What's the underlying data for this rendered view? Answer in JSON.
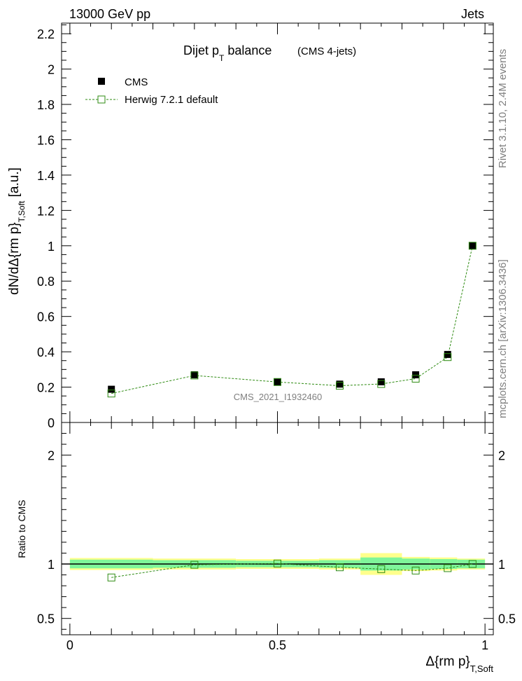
{
  "header": {
    "left": "13000 GeV pp",
    "right": "Jets"
  },
  "side": {
    "rivet": "Rivet 3.1.10, 2.4M events",
    "mcplots": "mcplots.cern.ch [arXiv:1306.3436]"
  },
  "plot": {
    "title_main": "Dijet p",
    "title_sub": "T",
    "title_rest": " balance",
    "title_note": "(CMS 4-jets)",
    "ylabel": "dN/dΔ{rm p}",
    "ylabel_sub": "T,Soft",
    "ylabel_unit": " [a.u.]",
    "analysis_id": "CMS_2021_I1932460",
    "ratio_ylabel": "Ratio to CMS",
    "xlabel": "Δ{rm p}",
    "xlabel_sub": "T,Soft"
  },
  "legend": {
    "placement": "top-left",
    "cms": "CMS",
    "mc": "Herwig 7.2.1 default"
  },
  "colors": {
    "data": "#000000",
    "mc": "#2e8b12",
    "band_stat": "#7ff59a",
    "band_total": "#ffff8c"
  },
  "chart_data": [
    {
      "type": "scatter",
      "panel": "main",
      "xlim": [
        -0.02,
        1.02
      ],
      "ylim": [
        0,
        2.26
      ],
      "xticks": [
        0,
        0.5,
        1
      ],
      "yticks": [
        0,
        0.2,
        0.4,
        0.6,
        0.8,
        1,
        1.2,
        1.4,
        1.6,
        1.8,
        2,
        2.2
      ],
      "ytick_labels": [
        "0",
        "0.2",
        "0.4",
        "0.6",
        "0.8",
        "1",
        "1.2",
        "1.4",
        "1.6",
        "1.8",
        "2",
        "2.2"
      ],
      "x": [
        0.1,
        0.3,
        0.5,
        0.65,
        0.75,
        0.833,
        0.91,
        0.97
      ],
      "series": [
        {
          "name": "CMS",
          "values": [
            0.188,
            0.27,
            0.23,
            0.217,
            0.23,
            0.27,
            0.385,
            1.0
          ]
        },
        {
          "name": "Herwig 7.2.1 default",
          "values": [
            0.164,
            0.266,
            0.229,
            0.208,
            0.218,
            0.248,
            0.37,
            1.0
          ]
        }
      ]
    },
    {
      "type": "scatter",
      "panel": "ratio",
      "xlim": [
        -0.02,
        1.02
      ],
      "ylim": [
        0.35,
        2.3
      ],
      "xticks": [
        0,
        0.5,
        1
      ],
      "xtick_labels": [
        "0",
        "0.5",
        "1"
      ],
      "yticks": [
        0.5,
        1,
        2
      ],
      "ytick_labels": [
        "0.5",
        "1",
        "2"
      ],
      "x": [
        0.1,
        0.3,
        0.5,
        0.65,
        0.75,
        0.833,
        0.91,
        0.97
      ],
      "series": [
        {
          "name": "Herwig 7.2.1 default",
          "values": [
            0.876,
            0.993,
            1.004,
            0.97,
            0.953,
            0.94,
            0.962,
            1.0
          ]
        }
      ],
      "band_edges": [
        0.0,
        0.2,
        0.4,
        0.6,
        0.7,
        0.8,
        0.867,
        0.933,
        1.0
      ],
      "band_stat_half": [
        0.04,
        0.035,
        0.03,
        0.035,
        0.06,
        0.05,
        0.045,
        0.04
      ],
      "band_total_half": [
        0.055,
        0.05,
        0.045,
        0.05,
        0.1,
        0.065,
        0.06,
        0.05
      ]
    }
  ]
}
